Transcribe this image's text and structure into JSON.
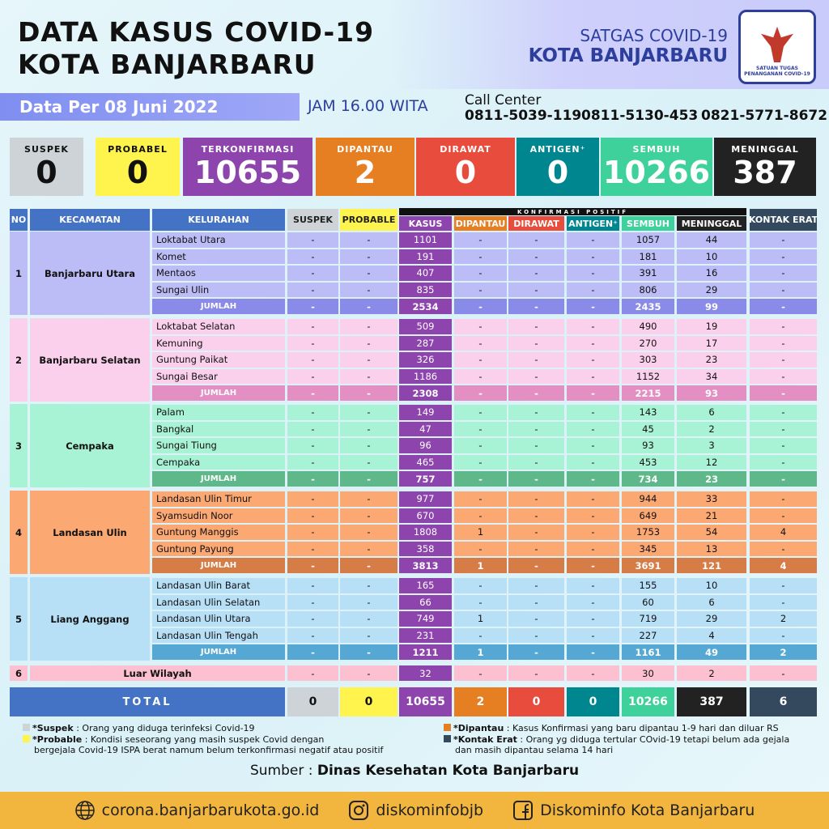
{
  "header": {
    "title_line1": "DATA KASUS COVID-19",
    "title_line2": "KOTA BANJARBARU",
    "org_line1": "SATGAS COVID-19",
    "org_line2": "KOTA BANJARBARU",
    "logo_text": "SATUAN TUGAS PENANGANAN COVID-19"
  },
  "info": {
    "date": "Data Per 08 Juni 2022",
    "time": "JAM 16.00 WITA",
    "call_center_label": "Call Center",
    "phones": [
      "0811-5039-119",
      "0811-5130-453",
      "0821-5771-8672"
    ]
  },
  "summary": [
    {
      "label": "SUSPEK",
      "value": "0",
      "color": "#cdd3d6",
      "text": "#111"
    },
    {
      "label": "PROBABEL",
      "value": "0",
      "color": "#fff34d",
      "text": "#111"
    },
    {
      "label": "TERKONFIRMASI",
      "value": "10655",
      "color": "#8e44ad",
      "text": "#fff"
    },
    {
      "label": "DIPANTAU",
      "value": "2",
      "color": "#e67e22",
      "text": "#fff"
    },
    {
      "label": "DIRAWAT",
      "value": "0",
      "color": "#e74c3c",
      "text": "#fff"
    },
    {
      "label": "ANTIGEN⁺",
      "value": "0",
      "color": "#00868f",
      "text": "#fff"
    },
    {
      "label": "SEMBUH",
      "value": "10266",
      "color": "#3fd19b",
      "text": "#fff"
    },
    {
      "label": "MENINGGAL",
      "value": "387",
      "color": "#222222",
      "text": "#fff"
    }
  ],
  "table": {
    "group_header": "KONFIRMASI POSITIF",
    "columns": [
      "NO",
      "KECAMATAN",
      "KELURAHAN",
      "SUSPEK",
      "PROBABLE",
      "KASUS",
      "DIPANTAU",
      "DIRAWAT",
      "ANTIGEN⁺",
      "SEMBUH",
      "MENINGGAL",
      "KONTAK ERAT"
    ],
    "groups": [
      {
        "no": "1",
        "kecamatan": "Banjarbaru Utara",
        "color": "#bcbcf6",
        "sum_color": "#8a8ae8",
        "rows": [
          [
            "Loktabat Utara",
            "-",
            "-",
            "1101",
            "-",
            "-",
            "-",
            "1057",
            "44",
            "-"
          ],
          [
            "Komet",
            "-",
            "-",
            "191",
            "-",
            "-",
            "-",
            "181",
            "10",
            "-"
          ],
          [
            "Mentaos",
            "-",
            "-",
            "407",
            "-",
            "-",
            "-",
            "391",
            "16",
            "-"
          ],
          [
            "Sungai Ulin",
            "-",
            "-",
            "835",
            "-",
            "-",
            "-",
            "806",
            "29",
            "-"
          ],
          [
            "JUMLAH",
            "-",
            "-",
            "2534",
            "-",
            "-",
            "-",
            "2435",
            "99",
            "-"
          ]
        ]
      },
      {
        "no": "2",
        "kecamatan": "Banjarbaru Selatan",
        "color": "#fbd0ec",
        "sum_color": "#e38fc4",
        "rows": [
          [
            "Loktabat Selatan",
            "-",
            "-",
            "509",
            "-",
            "-",
            "-",
            "490",
            "19",
            "-"
          ],
          [
            "Kemuning",
            "-",
            "-",
            "287",
            "-",
            "-",
            "-",
            "270",
            "17",
            "-"
          ],
          [
            "Guntung Paikat",
            "-",
            "-",
            "326",
            "-",
            "-",
            "-",
            "303",
            "23",
            "-"
          ],
          [
            "Sungai Besar",
            "-",
            "-",
            "1186",
            "-",
            "-",
            "-",
            "1152",
            "34",
            "-"
          ],
          [
            "JUMLAH",
            "-",
            "-",
            "2308",
            "-",
            "-",
            "-",
            "2215",
            "93",
            "-"
          ]
        ]
      },
      {
        "no": "3",
        "kecamatan": "Cempaka",
        "color": "#a8f2d6",
        "sum_color": "#5fb88a",
        "rows": [
          [
            "Palam",
            "-",
            "-",
            "149",
            "-",
            "-",
            "-",
            "143",
            "6",
            "-"
          ],
          [
            "Bangkal",
            "-",
            "-",
            "47",
            "-",
            "-",
            "-",
            "45",
            "2",
            "-"
          ],
          [
            "Sungai Tiung",
            "-",
            "-",
            "96",
            "-",
            "-",
            "-",
            "93",
            "3",
            "-"
          ],
          [
            "Cempaka",
            "-",
            "-",
            "465",
            "-",
            "-",
            "-",
            "453",
            "12",
            "-"
          ],
          [
            "JUMLAH",
            "-",
            "-",
            "757",
            "-",
            "-",
            "-",
            "734",
            "23",
            "-"
          ]
        ]
      },
      {
        "no": "4",
        "kecamatan": "Landasan Ulin",
        "color": "#fba873",
        "sum_color": "#d67c47",
        "rows": [
          [
            "Landasan Ulin Timur",
            "-",
            "-",
            "977",
            "-",
            "-",
            "-",
            "944",
            "33",
            "-"
          ],
          [
            "Syamsudin Noor",
            "-",
            "-",
            "670",
            "-",
            "-",
            "-",
            "649",
            "21",
            "-"
          ],
          [
            "Guntung Manggis",
            "-",
            "-",
            "1808",
            "1",
            "-",
            "-",
            "1753",
            "54",
            "4"
          ],
          [
            "Guntung Payung",
            "-",
            "-",
            "358",
            "-",
            "-",
            "-",
            "345",
            "13",
            "-"
          ],
          [
            "JUMLAH",
            "-",
            "-",
            "3813",
            "1",
            "-",
            "-",
            "3691",
            "121",
            "4"
          ]
        ]
      },
      {
        "no": "5",
        "kecamatan": "Liang Anggang",
        "color": "#b7e0f7",
        "sum_color": "#55a8d4",
        "rows": [
          [
            "Landasan Ulin Barat",
            "-",
            "-",
            "165",
            "-",
            "-",
            "-",
            "155",
            "10",
            "-"
          ],
          [
            "Landasan Ulin Selatan",
            "-",
            "-",
            "66",
            "-",
            "-",
            "-",
            "60",
            "6",
            "-"
          ],
          [
            "Landasan Ulin Utara",
            "-",
            "-",
            "749",
            "1",
            "-",
            "-",
            "719",
            "29",
            "2"
          ],
          [
            "Landasan Ulin Tengah",
            "-",
            "-",
            "231",
            "-",
            "-",
            "-",
            "227",
            "4",
            "-"
          ],
          [
            "JUMLAH",
            "-",
            "-",
            "1211",
            "1",
            "-",
            "-",
            "1161",
            "49",
            "2"
          ]
        ]
      }
    ],
    "luar": {
      "no": "6",
      "kecamatan": "Luar Wilayah",
      "color": "#fcc0d0",
      "values": [
        "-",
        "-",
        "32",
        "-",
        "-",
        "-",
        "30",
        "2",
        "-"
      ]
    },
    "total": {
      "label": "TOTAL",
      "values": [
        "0",
        "0",
        "10655",
        "2",
        "0",
        "0",
        "10266",
        "387",
        "6"
      ]
    }
  },
  "legend": {
    "suspek_term": "*Suspek",
    "suspek_desc": ": Orang yang diduga terinfeksi Covid-19",
    "probable_term": "*Probable",
    "probable_desc": ": Kondisi seseorang yang masih suspek Covid dengan",
    "probable_desc2": "bergejala Covid-19 ISPA berat namum belum terkonfirmasi negatif atau positif",
    "dipantau_term": "*Dipantau",
    "dipantau_desc": ": Kasus Konfirmasi yang baru dipantau 1-9 hari dan diluar RS",
    "kontak_term": "*Kontak Erat",
    "kontak_desc": ": Orang yg diduga tertular COvid-19 tetapi belum ada gejala",
    "kontak_desc2": "dan masih dipantau selama 14 hari"
  },
  "source": {
    "label": "Sumber :",
    "value": "Dinas Kesehatan Kota Banjarbaru"
  },
  "footer": {
    "website": "corona.banjarbarukota.go.id",
    "instagram": "diskominfobjb",
    "facebook": "Diskominfo Kota Banjarbaru"
  }
}
